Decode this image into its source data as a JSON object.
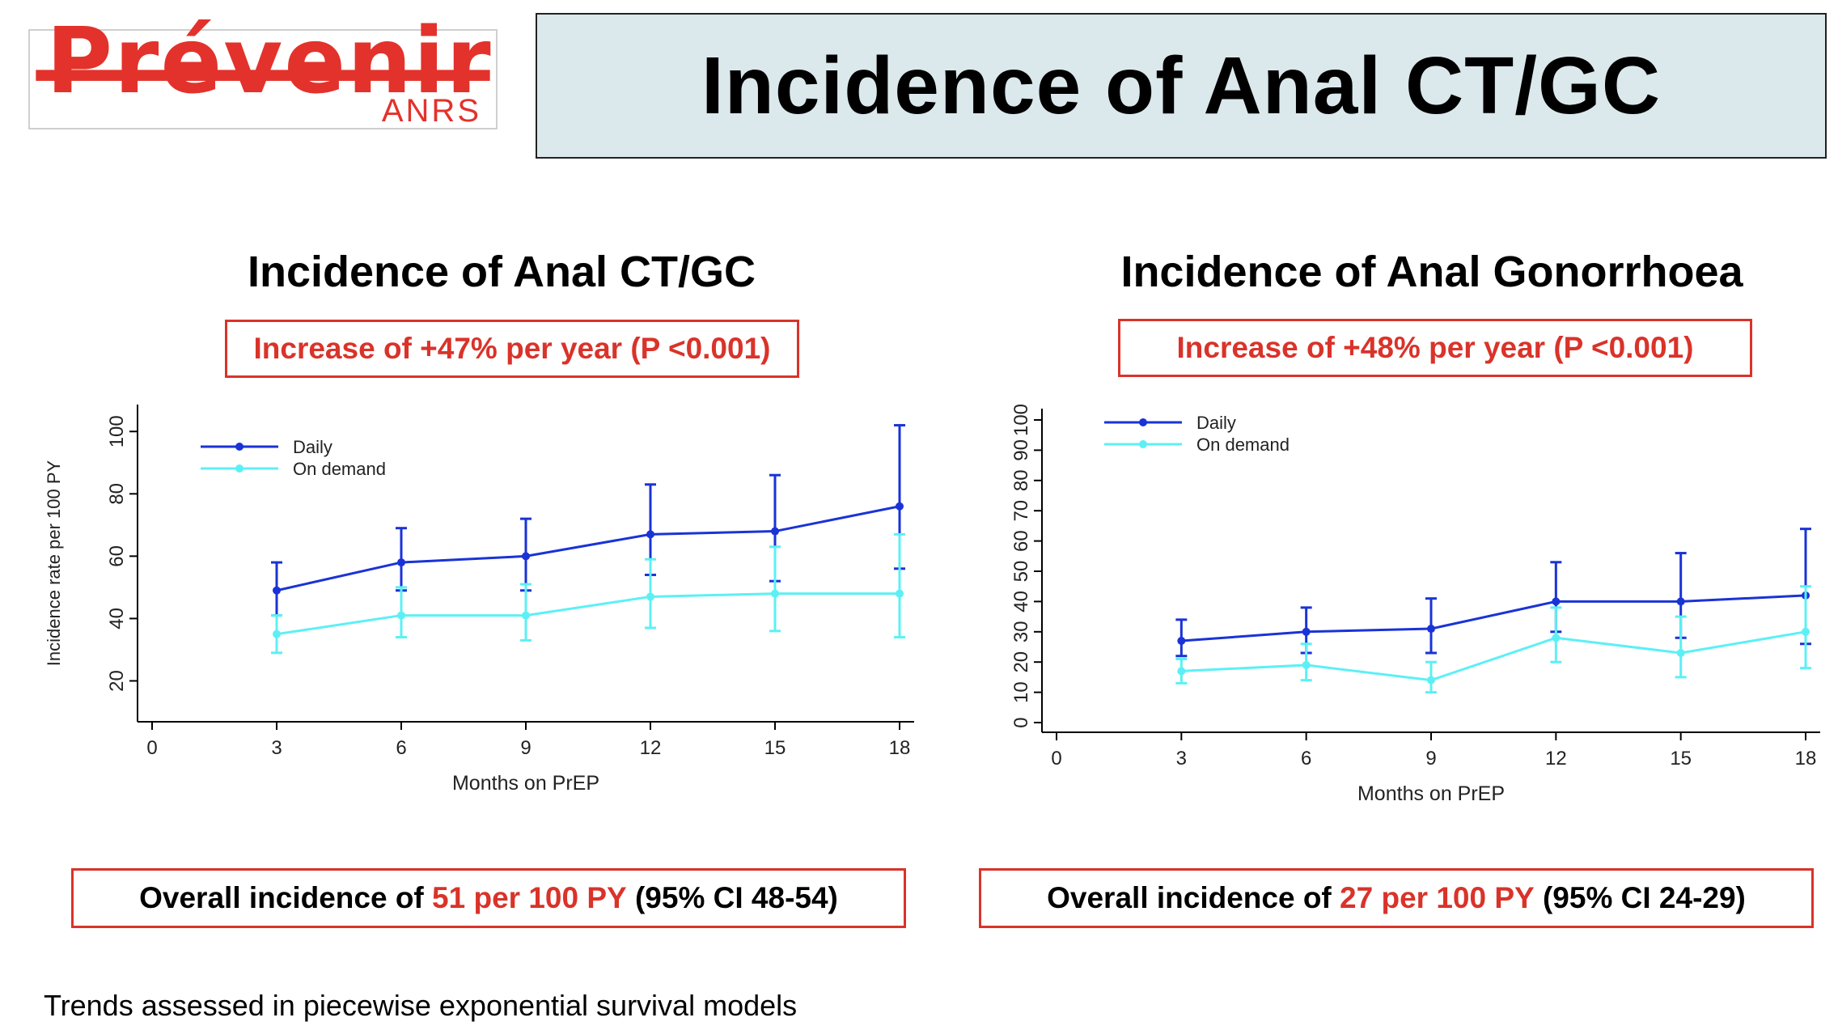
{
  "header": {
    "logo_word": "Prévenir",
    "logo_sub": "ANRS",
    "title": "Incidence of Anal CT/GC"
  },
  "panels": [
    {
      "title": "Incidence of Anal CT/GC",
      "trend": "Increase of +47% per year (P <0.001)",
      "overall_prefix": "Overall incidence of ",
      "overall_highlight": "51 per 100 PY",
      "overall_suffix": " (95% CI 48-54)"
    },
    {
      "title": "Incidence of Anal Gonorrhoea",
      "trend": "Increase of +48% per year (P <0.001)",
      "overall_prefix": "Overall incidence of ",
      "overall_highlight": "27 per 100 PY",
      "overall_suffix": " (95% CI 24-29)"
    }
  ],
  "footnote": "Trends assessed in piecewise exponential survival models",
  "colors": {
    "daily": "#1a33d6",
    "on_demand": "#5cf0f5",
    "accent": "#d9332a"
  },
  "chart_data": [
    {
      "type": "line",
      "xlabel": "Months on PrEP",
      "ylabel": "Incidence rate per 100 PY",
      "xlim": [
        0,
        18
      ],
      "ylim": [
        10,
        105
      ],
      "xticks": [
        0,
        3,
        6,
        9,
        12,
        15,
        18
      ],
      "yticks": [
        20,
        40,
        60,
        80,
        100
      ],
      "legend": "top-left",
      "grid": false,
      "x": [
        3,
        6,
        9,
        12,
        15,
        18
      ],
      "series": [
        {
          "name": "Daily",
          "color": "#1a33d6",
          "values": [
            49,
            58,
            60,
            67,
            68,
            76
          ],
          "lower": [
            41,
            49,
            49,
            54,
            52,
            56
          ],
          "upper": [
            58,
            69,
            72,
            83,
            86,
            102
          ]
        },
        {
          "name": "On demand",
          "color": "#5cf0f5",
          "values": [
            35,
            41,
            41,
            47,
            48,
            48
          ],
          "lower": [
            29,
            34,
            33,
            37,
            36,
            34
          ],
          "upper": [
            41,
            50,
            51,
            59,
            63,
            67
          ]
        }
      ]
    },
    {
      "type": "line",
      "xlabel": "Months on PrEP",
      "ylabel": "",
      "xlim": [
        0,
        18
      ],
      "ylim": [
        0,
        100
      ],
      "xticks": [
        0,
        3,
        6,
        9,
        12,
        15,
        18
      ],
      "yticks": [
        0,
        10,
        20,
        30,
        40,
        50,
        60,
        70,
        80,
        90,
        100
      ],
      "legend": "top-left",
      "grid": false,
      "x": [
        3,
        6,
        9,
        12,
        15,
        18
      ],
      "series": [
        {
          "name": "Daily",
          "color": "#1a33d6",
          "values": [
            27,
            30,
            31,
            40,
            40,
            42
          ],
          "lower": [
            22,
            23,
            23,
            30,
            28,
            26
          ],
          "upper": [
            34,
            38,
            41,
            53,
            56,
            64
          ]
        },
        {
          "name": "On demand",
          "color": "#5cf0f5",
          "values": [
            17,
            19,
            14,
            28,
            23,
            30
          ],
          "lower": [
            13,
            14,
            10,
            20,
            15,
            18
          ],
          "upper": [
            21,
            26,
            20,
            38,
            35,
            45
          ]
        }
      ]
    }
  ]
}
